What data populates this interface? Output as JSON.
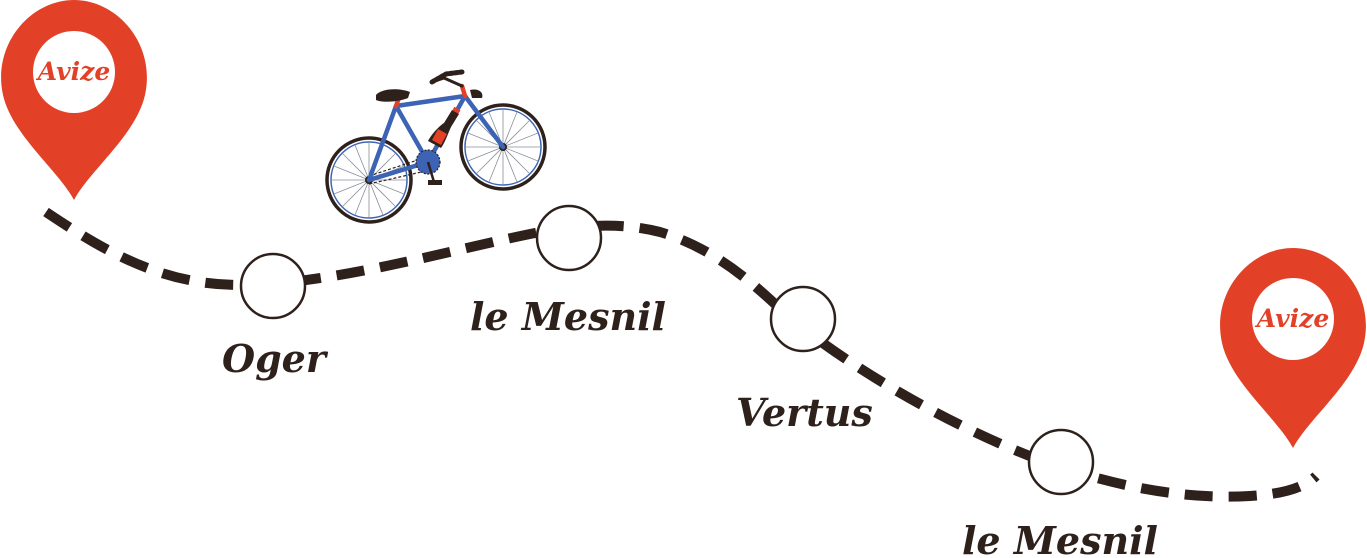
{
  "colors": {
    "route": "#2e211c",
    "pin": "#e34127",
    "bike_frame": "#3d63b5",
    "bottle": "#2e211c",
    "bottle_label": "#e34127"
  },
  "start_pin": {
    "label": "Avize",
    "icon": "map-pin-icon"
  },
  "end_pin": {
    "label": "Avize",
    "icon": "map-pin-icon"
  },
  "stops": [
    {
      "label": "Oger"
    },
    {
      "label": "le Mesnil"
    },
    {
      "label": "Vertus"
    },
    {
      "label": "le Mesnil"
    }
  ],
  "bicycle": {
    "icon": "bicycle-icon",
    "cargo": "champagne-bottle-icon"
  }
}
